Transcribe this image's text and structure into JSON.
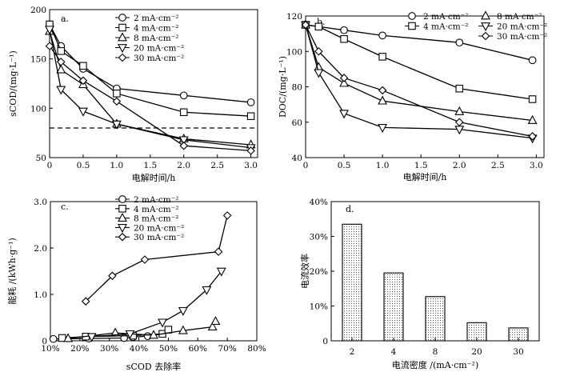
{
  "chart_data": [
    {
      "id": "a",
      "type": "line",
      "panel_label": "a.",
      "xlabel": "电解时间/h",
      "ylabel": "sCOD/(mg·L⁻¹)",
      "xlim": [
        0,
        3.1
      ],
      "ylim": [
        50,
        200
      ],
      "xticks": [
        0,
        0.5,
        1.0,
        1.5,
        2.0,
        2.5,
        3.0
      ],
      "xtick_labels": [
        "0",
        "0.5",
        "1.0",
        "1.5",
        "2.0",
        "2.5",
        "3.0"
      ],
      "yticks": [
        50,
        100,
        150,
        200
      ],
      "ytick_labels": [
        "50",
        "100",
        "150",
        "200"
      ],
      "hline": 80,
      "legend_position": "top-right",
      "series": [
        {
          "name": "2 mA·cm⁻²",
          "marker": "circle",
          "x": [
            0,
            0.17,
            0.5,
            1.0,
            2.0,
            3.0
          ],
          "y": [
            185,
            163,
            140,
            120,
            113,
            106
          ]
        },
        {
          "name": "4 mA·cm⁻²",
          "marker": "square",
          "x": [
            0,
            0.17,
            0.5,
            1.0,
            2.0,
            3.0
          ],
          "y": [
            185,
            158,
            143,
            115,
            96,
            92
          ]
        },
        {
          "name": "8 mA·cm⁻²",
          "marker": "triangle-up",
          "x": [
            0,
            0.17,
            0.5,
            1.0,
            2.0,
            3.0
          ],
          "y": [
            178,
            139,
            124,
            84,
            69,
            63
          ]
        },
        {
          "name": "20 mA·cm⁻²",
          "marker": "triangle-down",
          "x": [
            0,
            0.17,
            0.5,
            1.0,
            2.0,
            3.0
          ],
          "y": [
            180,
            119,
            97,
            84,
            68,
            60
          ]
        },
        {
          "name": "30 mA·cm⁻²",
          "marker": "diamond",
          "x": [
            0,
            0.17,
            0.5,
            1.0,
            2.0,
            3.0
          ],
          "y": [
            163,
            147,
            128,
            107,
            62,
            57
          ]
        }
      ]
    },
    {
      "id": "b",
      "type": "line",
      "panel_label": "b.",
      "xlabel": "电解时间/h",
      "ylabel": "DOC/(mg·L⁻¹)",
      "xlim": [
        0,
        3.1
      ],
      "ylim": [
        40,
        120
      ],
      "xticks": [
        0,
        0.5,
        1.0,
        1.5,
        2.0,
        2.5,
        3.0
      ],
      "xtick_labels": [
        "0",
        "0.5",
        "1.0",
        "1.5",
        "2.0",
        "2.5",
        "3.0"
      ],
      "yticks": [
        40,
        60,
        80,
        100,
        120
      ],
      "ytick_labels": [
        "40",
        "60",
        "80",
        "100",
        "120"
      ],
      "legend_position": "top-right",
      "series": [
        {
          "name": "2 mA·cm⁻²",
          "marker": "circle",
          "x": [
            0,
            0.17,
            0.5,
            1.0,
            2.0,
            2.95
          ],
          "y": [
            115,
            114,
            112,
            109,
            105,
            95
          ]
        },
        {
          "name": "4 mA·cm⁻²",
          "marker": "square",
          "x": [
            0,
            0.17,
            0.5,
            1.0,
            2.0,
            2.95
          ],
          "y": [
            115,
            114,
            107,
            97,
            79,
            73
          ]
        },
        {
          "name": "8 mA·cm⁻²",
          "marker": "triangle-up",
          "x": [
            0,
            0.17,
            0.5,
            1.0,
            2.0,
            2.95
          ],
          "y": [
            115,
            91,
            82,
            72,
            66,
            61
          ]
        },
        {
          "name": "20 mA·cm⁻²",
          "marker": "triangle-down",
          "x": [
            0,
            0.17,
            0.5,
            1.0,
            2.0,
            2.95
          ],
          "y": [
            115,
            88,
            65,
            57,
            56,
            51
          ]
        },
        {
          "name": "30 mA·cm⁻²",
          "marker": "diamond",
          "x": [
            0,
            0.17,
            0.5,
            1.0,
            2.0,
            2.95
          ],
          "y": [
            115,
            100,
            85,
            78,
            60,
            52
          ]
        }
      ]
    },
    {
      "id": "c",
      "type": "line",
      "panel_label": "c.",
      "xlabel": "sCOD 去除率",
      "ylabel": "能耗 /(kWh·g⁻¹)",
      "xlim": [
        10,
        80
      ],
      "ylim": [
        0,
        3.0
      ],
      "xticks": [
        10,
        20,
        30,
        40,
        50,
        60,
        70,
        80
      ],
      "xtick_labels": [
        "10%",
        "20%",
        "30%",
        "40%",
        "50%",
        "60%",
        "70%",
        "80%"
      ],
      "yticks": [
        0,
        1.0,
        2.0,
        3.0
      ],
      "ytick_labels": [
        "0",
        "1.0",
        "2.0",
        "3.0"
      ],
      "legend_position": "top-left",
      "series": [
        {
          "name": "2 mA·cm⁻²",
          "marker": "circle",
          "x": [
            11,
            23,
            35,
            38,
            43
          ],
          "y": [
            0.04,
            0.05,
            0.06,
            0.08,
            0.1
          ]
        },
        {
          "name": "4 mA·cm⁻²",
          "marker": "square",
          "x": [
            14,
            22,
            38,
            48,
            50
          ],
          "y": [
            0.06,
            0.09,
            0.11,
            0.15,
            0.24
          ]
        },
        {
          "name": "8 mA·cm⁻²",
          "marker": "triangle-up",
          "x": [
            16,
            32,
            45,
            55,
            65,
            66
          ],
          "y": [
            0.05,
            0.17,
            0.12,
            0.22,
            0.3,
            0.42
          ]
        },
        {
          "name": "20 mA·cm⁻²",
          "marker": "triangle-down",
          "x": [
            24,
            37,
            48,
            55,
            63,
            68
          ],
          "y": [
            0.09,
            0.15,
            0.4,
            0.65,
            1.1,
            1.5
          ]
        },
        {
          "name": "30 mA·cm⁻²",
          "marker": "diamond",
          "x": [
            22,
            31,
            42,
            67,
            70
          ],
          "y": [
            0.85,
            1.4,
            1.75,
            1.92,
            2.7
          ]
        }
      ]
    },
    {
      "id": "d",
      "type": "bar",
      "panel_label": "d.",
      "xlabel": "电流密度 /(mA·cm⁻²)",
      "ylabel": "电流效率",
      "ylim": [
        0,
        40
      ],
      "yticks": [
        0,
        10,
        20,
        30,
        40
      ],
      "ytick_labels": [
        "0",
        "10%",
        "20%",
        "30%",
        "40%"
      ],
      "categories": [
        "2",
        "4",
        "8",
        "20",
        "30"
      ],
      "values": [
        33.5,
        19.5,
        12.7,
        5.2,
        3.7
      ]
    }
  ]
}
